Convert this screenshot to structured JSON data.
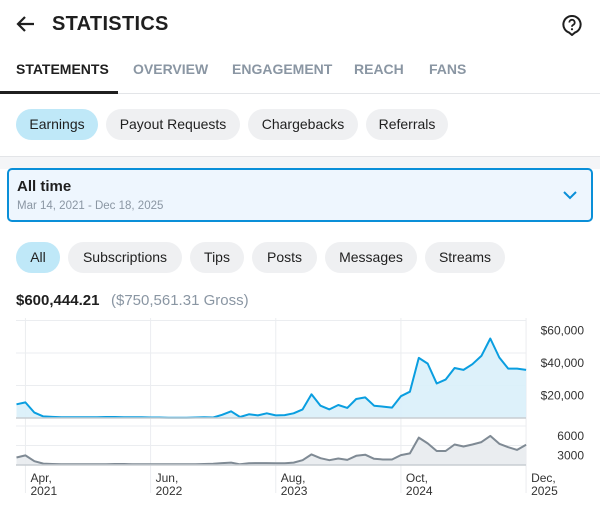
{
  "header": {
    "title": "STATISTICS",
    "back_icon": "arrow-left-icon",
    "help_icon": "help-circle-icon"
  },
  "tabs": [
    {
      "label": "STATEMENTS",
      "active": true
    },
    {
      "label": "OVERVIEW"
    },
    {
      "label": "ENGAGEMENT"
    },
    {
      "label": "REACH"
    },
    {
      "label": "FANS"
    }
  ],
  "statement_types": [
    {
      "label": "Earnings",
      "active": true
    },
    {
      "label": "Payout Requests"
    },
    {
      "label": "Chargebacks"
    },
    {
      "label": "Referrals"
    }
  ],
  "range": {
    "title": "All time",
    "subtitle": "Mar 14, 2021 - Dec 18, 2025"
  },
  "filters": [
    {
      "label": "All",
      "active": true
    },
    {
      "label": "Subscriptions"
    },
    {
      "label": "Tips"
    },
    {
      "label": "Posts"
    },
    {
      "label": "Messages"
    },
    {
      "label": "Streams"
    }
  ],
  "totals": {
    "net": "$600,444.21",
    "gross": "($750,561.31 Gross)"
  },
  "colors": {
    "accent": "#0a9ee0",
    "accent_fill": "#d9f0fa",
    "secondary": "#7f8a94",
    "chip_active": "#bfe8f8"
  },
  "chart_data": [
    {
      "type": "area",
      "ylim": [
        0,
        60000
      ],
      "yticks": [
        "$20,000",
        "$40,000",
        "$60,000"
      ],
      "ytick_values": [
        20000,
        40000,
        60000
      ],
      "grid": true,
      "x": [
        "2021-03",
        "2021-04",
        "2021-05",
        "2021-06",
        "2021-07",
        "2021-08",
        "2021-09",
        "2021-10",
        "2021-11",
        "2021-12",
        "2022-01",
        "2022-02",
        "2022-03",
        "2022-04",
        "2022-05",
        "2022-06",
        "2022-07",
        "2022-08",
        "2022-09",
        "2022-10",
        "2022-11",
        "2022-12",
        "2023-01",
        "2023-02",
        "2023-03",
        "2023-04",
        "2023-05",
        "2023-06",
        "2023-07",
        "2023-08",
        "2023-09",
        "2023-10",
        "2023-11",
        "2023-12",
        "2024-01",
        "2024-02",
        "2024-03",
        "2024-04",
        "2024-05",
        "2024-06",
        "2024-07",
        "2024-08",
        "2024-09",
        "2024-10",
        "2024-11",
        "2024-12",
        "2025-01",
        "2025-02",
        "2025-03",
        "2025-04",
        "2025-05",
        "2025-06",
        "2025-07",
        "2025-08",
        "2025-09",
        "2025-10",
        "2025-11",
        "2025-12"
      ],
      "values": [
        8400,
        9600,
        3300,
        1000,
        700,
        500,
        400,
        400,
        400,
        500,
        600,
        600,
        500,
        400,
        400,
        300,
        300,
        200,
        200,
        200,
        300,
        400,
        300,
        2000,
        4100,
        600,
        2300,
        1600,
        2900,
        1600,
        1800,
        2900,
        5300,
        14600,
        7600,
        5300,
        8000,
        6200,
        11700,
        12700,
        7600,
        7000,
        6400,
        13400,
        16200,
        37000,
        33500,
        21200,
        23600,
        30800,
        29600,
        33100,
        38200,
        48900,
        37200,
        30400,
        30400,
        29600
      ]
    },
    {
      "type": "area",
      "ylim": [
        0,
        6000
      ],
      "yticks": [
        "3000",
        "6000"
      ],
      "ytick_values": [
        3000,
        6000
      ],
      "grid": true,
      "values": [
        1160,
        1470,
        580,
        210,
        150,
        120,
        100,
        100,
        100,
        120,
        120,
        150,
        150,
        120,
        100,
        100,
        100,
        100,
        100,
        100,
        120,
        150,
        200,
        300,
        370,
        100,
        260,
        300,
        300,
        260,
        260,
        370,
        740,
        1630,
        1050,
        740,
        1000,
        790,
        1420,
        1580,
        950,
        840,
        840,
        1530,
        1790,
        4210,
        3320,
        2160,
        2160,
        3160,
        2840,
        3160,
        3530,
        4470,
        3260,
        2740,
        2320,
        3100
      ]
    }
  ],
  "xaxis": {
    "ticks": [
      {
        "month": "2021-04",
        "line1": "Apr,",
        "line2": "2021"
      },
      {
        "month": "2022-06",
        "line1": "Jun,",
        "line2": "2022"
      },
      {
        "month": "2023-08",
        "line1": "Aug,",
        "line2": "2023"
      },
      {
        "month": "2024-10",
        "line1": "Oct,",
        "line2": "2024"
      },
      {
        "month": "2025-12",
        "line1": "Dec,",
        "line2": "2025"
      }
    ]
  }
}
